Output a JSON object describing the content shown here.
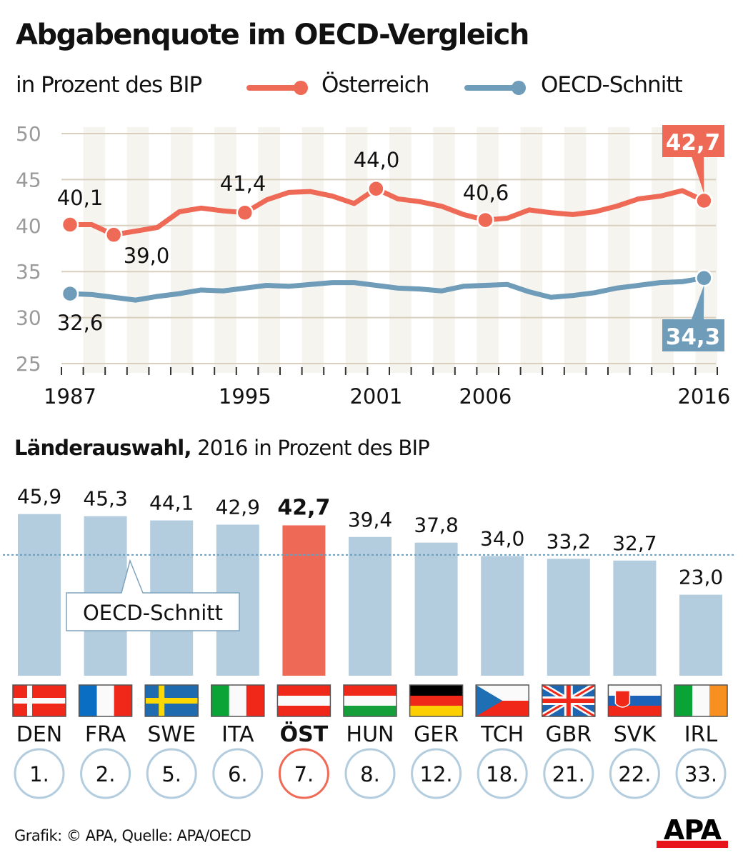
{
  "title": "Abgabenquote im OECD-Vergleich",
  "subtitle": "in Prozent des BIP",
  "source": "Grafik: © APA, Quelle: APA/OECD",
  "logo_text": "APA",
  "colors": {
    "austria": "#ef6a56",
    "oecd": "#6e9cb9",
    "bar": "#b3cddf",
    "grid": "#d9cfbf",
    "stripe": "#f6f4ee",
    "axis_label": "#9a9a9a"
  },
  "chart_data": [
    {
      "type": "line",
      "title": "Abgabenquote im OECD-Vergleich",
      "ylabel": "in Prozent des BIP",
      "ylim": [
        25,
        50
      ],
      "yticks": [
        "25",
        "30",
        "35",
        "40",
        "45",
        "50"
      ],
      "xlim": [
        1987,
        2016
      ],
      "xtick_labels": [
        "1987",
        "1995",
        "2001",
        "2006",
        "2016"
      ],
      "grid": true,
      "legend": "top",
      "x": [
        1987,
        1988,
        1989,
        1990,
        1991,
        1992,
        1993,
        1994,
        1995,
        1996,
        1997,
        1998,
        1999,
        2000,
        2001,
        2002,
        2003,
        2004,
        2005,
        2006,
        2007,
        2008,
        2009,
        2010,
        2011,
        2012,
        2013,
        2014,
        2015,
        2016
      ],
      "series": [
        {
          "name": "Österreich",
          "color": "#ef6a56",
          "values": [
            40.1,
            40.1,
            39.0,
            39.4,
            39.8,
            41.5,
            41.9,
            41.6,
            41.4,
            42.8,
            43.6,
            43.7,
            43.2,
            42.4,
            44.0,
            42.9,
            42.6,
            42.1,
            41.2,
            40.6,
            40.8,
            41.7,
            41.4,
            41.2,
            41.5,
            42.1,
            42.9,
            43.2,
            43.8,
            42.7
          ]
        },
        {
          "name": "OECD-Schnitt",
          "color": "#6e9cb9",
          "values": [
            32.6,
            32.5,
            32.2,
            31.9,
            32.3,
            32.6,
            33.0,
            32.9,
            33.2,
            33.5,
            33.4,
            33.6,
            33.8,
            33.8,
            33.5,
            33.2,
            33.1,
            32.9,
            33.4,
            33.5,
            33.6,
            32.8,
            32.2,
            32.4,
            32.7,
            33.2,
            33.5,
            33.8,
            33.9,
            34.3
          ]
        }
      ],
      "annotations": [
        {
          "series": 0,
          "year": 1987,
          "label": "40,1"
        },
        {
          "series": 0,
          "year": 1989,
          "label": "39,0"
        },
        {
          "series": 0,
          "year": 1995,
          "label": "41,4"
        },
        {
          "series": 0,
          "year": 2001,
          "label": "44,0"
        },
        {
          "series": 0,
          "year": 2006,
          "label": "40,6"
        },
        {
          "series": 0,
          "year": 2016,
          "label": "42,7",
          "boxed": true
        },
        {
          "series": 1,
          "year": 1987,
          "label": "32,6"
        },
        {
          "series": 1,
          "year": 2016,
          "label": "34,3",
          "boxed": true
        }
      ]
    },
    {
      "type": "bar",
      "title": "Länderauswahl,",
      "subtitle": "2016 in Prozent des BIP",
      "reference_line": {
        "label": "OECD-Schnitt",
        "value": 34.3
      },
      "categories": [
        "DEN",
        "FRA",
        "SWE",
        "ITA",
        "ÖST",
        "HUN",
        "GER",
        "TCH",
        "GBR",
        "SVK",
        "IRL"
      ],
      "values": [
        45.9,
        45.3,
        44.1,
        42.9,
        42.7,
        39.4,
        37.8,
        34.0,
        33.2,
        32.7,
        23.0
      ],
      "value_labels": [
        "45,9",
        "45,3",
        "44,1",
        "42,9",
        "42,7",
        "39,4",
        "37,8",
        "34,0",
        "33,2",
        "32,7",
        "23,0"
      ],
      "ranks": [
        "1.",
        "2.",
        "5.",
        "6.",
        "7.",
        "8.",
        "12.",
        "18.",
        "21.",
        "22.",
        "33."
      ],
      "highlight": "ÖST",
      "flags": [
        "denmark-flag",
        "france-flag",
        "sweden-flag",
        "italy-flag",
        "austria-flag",
        "hungary-flag",
        "germany-flag",
        "czechia-flag",
        "uk-flag",
        "slovakia-flag",
        "ireland-flag"
      ]
    }
  ]
}
